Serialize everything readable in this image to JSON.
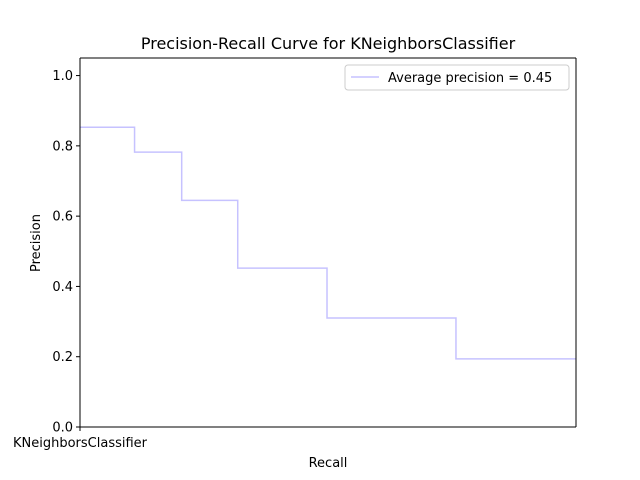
{
  "chart_data": {
    "type": "line",
    "drawstyle": "steps-post",
    "title": "Precision-Recall Curve for KNeighborsClassifier",
    "xlabel": "Recall",
    "ylabel": "Precision",
    "xlim": [
      0.0,
      1.0
    ],
    "ylim": [
      0.0,
      1.05
    ],
    "x_tick_labels": [
      "KNeighborsClassifier"
    ],
    "y_ticks": [
      0.0,
      0.2,
      0.4,
      0.6,
      0.8,
      1.0
    ],
    "y_tick_labels": [
      "0.0",
      "0.2",
      "0.4",
      "0.6",
      "0.8",
      "1.0"
    ],
    "series": [
      {
        "name": "Average precision = 0.45",
        "color": "#c6c2ff",
        "x": [
          0.0,
          0.11,
          0.205,
          0.318,
          0.498,
          0.758,
          1.0
        ],
        "y": [
          0.853,
          0.782,
          0.645,
          0.452,
          0.31,
          0.194,
          0.194
        ]
      }
    ],
    "legend": {
      "position": "top-right",
      "entries": [
        "Average precision = 0.45"
      ]
    }
  }
}
